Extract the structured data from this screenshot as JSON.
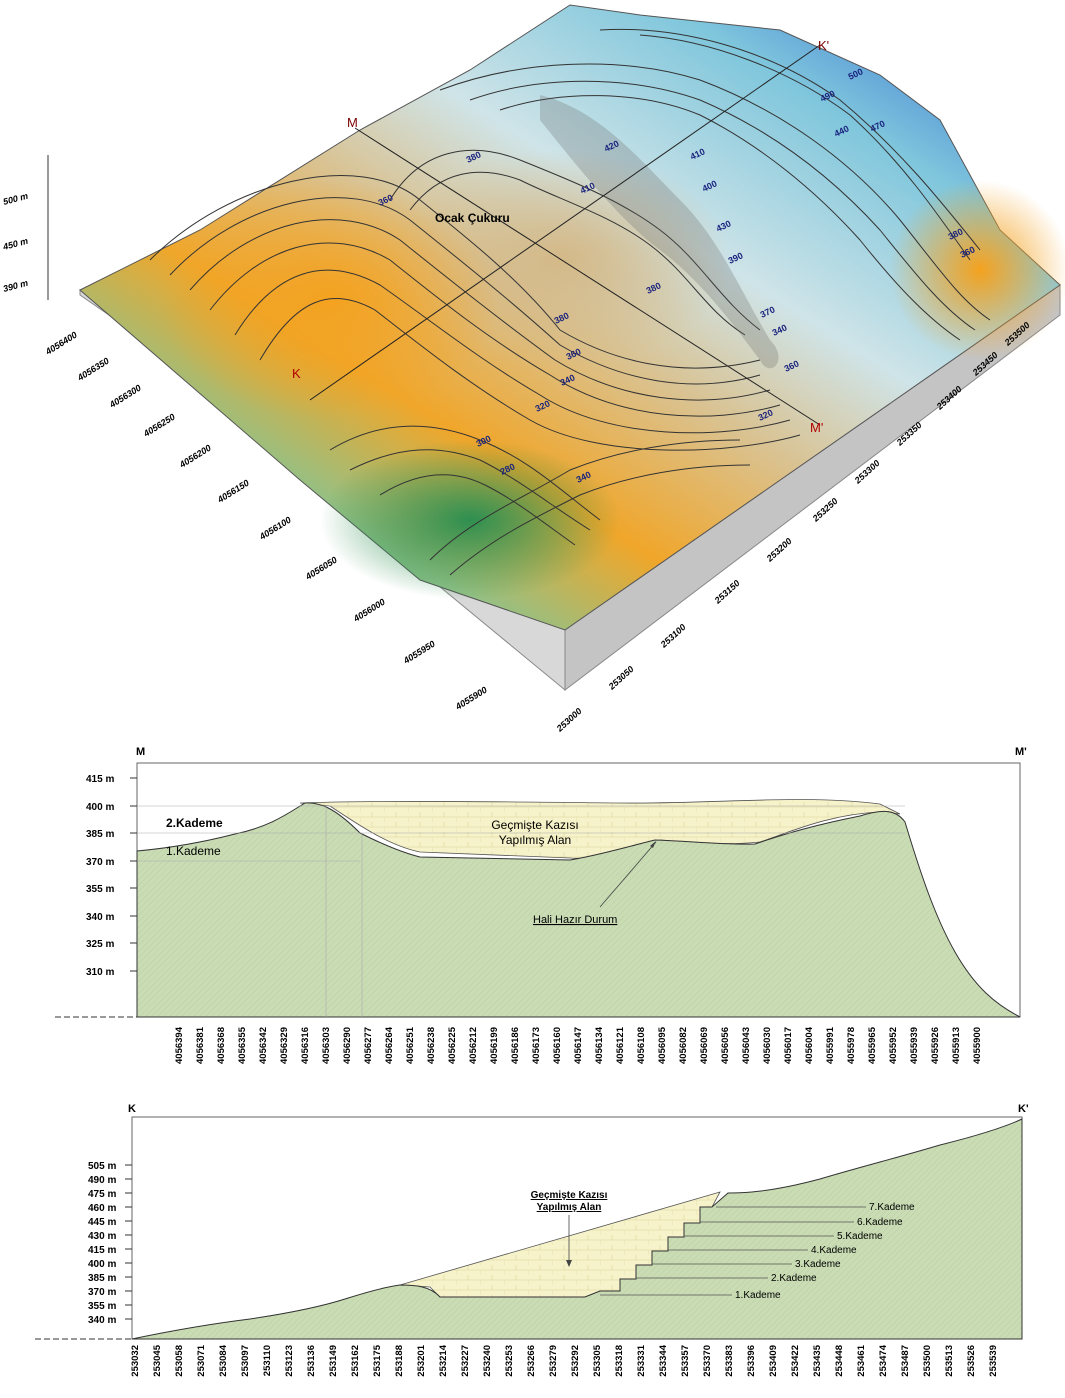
{
  "block_diagram": {
    "pit_label": "Ocak Çukuru",
    "section_markers": [
      "M",
      "M'",
      "K",
      "K'"
    ],
    "z_axis_labels": [
      "500 m",
      "450 m",
      "390 m"
    ],
    "y_axis_labels": [
      "4056400",
      "4056350",
      "4056300",
      "4056250",
      "4056200",
      "4056150",
      "4056100",
      "4056050",
      "4056000",
      "4055950",
      "4055900"
    ],
    "x_axis_labels": [
      "253000",
      "253050",
      "253100",
      "253150",
      "253200",
      "253250",
      "253300",
      "253350",
      "253400",
      "253450",
      "253500"
    ],
    "contour_labels": [
      "300",
      "280",
      "340",
      "320",
      "340",
      "360",
      "380",
      "380",
      "320",
      "340",
      "360",
      "370",
      "390",
      "400",
      "410",
      "420",
      "380",
      "360",
      "410",
      "430",
      "440",
      "470",
      "490",
      "500",
      "360",
      "380"
    ],
    "colors": {
      "low": "#3f9e5a",
      "mid": "#f2a12c",
      "pit": "#d8c090",
      "high": "#1e5fd0",
      "side": "#d6d6d6"
    }
  },
  "section_mm": {
    "start_label": "M",
    "end_label": "M'",
    "y_ticks": [
      "415 m",
      "400 m",
      "385 m",
      "370 m",
      "355 m",
      "340 m",
      "325 m",
      "310 m"
    ],
    "x_ticks": [
      "4056394",
      "4056381",
      "4056368",
      "4056355",
      "4056342",
      "4056329",
      "4056316",
      "4056303",
      "4056290",
      "4056277",
      "4056264",
      "4056251",
      "4056238",
      "4056225",
      "4056212",
      "4056199",
      "4056186",
      "4056173",
      "4056160",
      "4056147",
      "4056134",
      "4056121",
      "4056108",
      "4056095",
      "4056082",
      "4056069",
      "4056056",
      "4056043",
      "4056030",
      "4056017",
      "4056004",
      "4055991",
      "4055978",
      "4055965",
      "4055952",
      "4055939",
      "4055926",
      "4055913",
      "4055900"
    ],
    "bench_labels": [
      "2.Kademe",
      "1.Kademe"
    ],
    "excavated_label_line1": "Geçmişte Kazısı",
    "excavated_label_line2": "Yapılmış Alan",
    "current_label": "Hali Hazır Durum",
    "colors": {
      "ground": "#c8dbb2",
      "excavated": "#f4f0c8"
    }
  },
  "section_kk": {
    "start_label": "K",
    "end_label": "K'",
    "y_ticks": [
      "505 m",
      "490 m",
      "475 m",
      "460 m",
      "445 m",
      "430 m",
      "415 m",
      "400 m",
      "385 m",
      "370 m",
      "355 m",
      "340 m"
    ],
    "x_ticks": [
      "253032",
      "253045",
      "253058",
      "253071",
      "253084",
      "253097",
      "253110",
      "253123",
      "253136",
      "253149",
      "253162",
      "253175",
      "253188",
      "253201",
      "253214",
      "253227",
      "253240",
      "253253",
      "253266",
      "253279",
      "253292",
      "253305",
      "253318",
      "253331",
      "253344",
      "253357",
      "253370",
      "253383",
      "253396",
      "253409",
      "253422",
      "253435",
      "253448",
      "253461",
      "253474",
      "253487",
      "253500",
      "253513",
      "253526",
      "253539"
    ],
    "excavated_label_line1": "Geçmişte Kazısı",
    "excavated_label_line2": "Yapılmış Alan",
    "bench_labels": [
      "7.Kademe",
      "6.Kademe",
      "5.Kademe",
      "4.Kademe",
      "3.Kademe",
      "2.Kademe",
      "1.Kademe"
    ]
  }
}
